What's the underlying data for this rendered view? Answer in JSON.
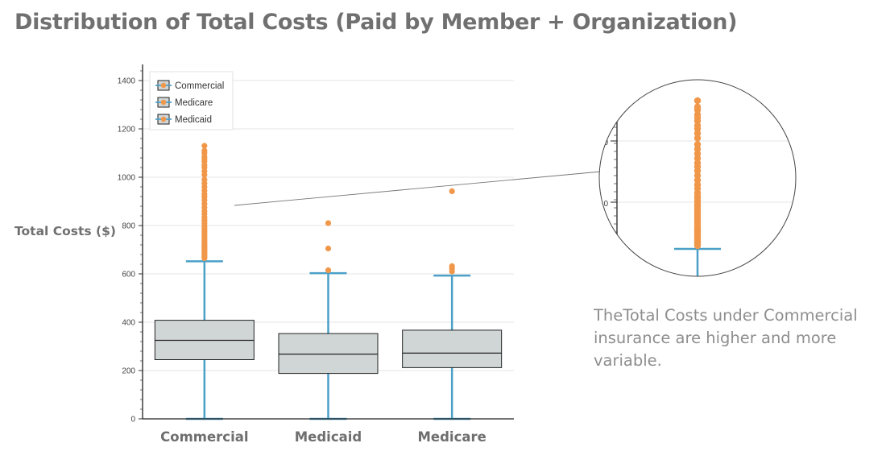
{
  "title": "Distribution of Total Costs (Paid by Member + Organization)",
  "annotation": "TheTotal Costs under Commercial insurance are higher and more variable.",
  "chart_data": {
    "type": "box",
    "ylabel": "Total Costs ($)",
    "xlabel": "",
    "ylim": [
      0,
      1450
    ],
    "yticks": [
      0,
      200,
      400,
      600,
      800,
      1000,
      1200,
      1400
    ],
    "grid": true,
    "legend_position": "top-left",
    "legend": [
      "Commercial",
      "Medicare",
      "Medicaid"
    ],
    "categories": [
      "Commercial",
      "Medicaid",
      "Medicare"
    ],
    "boxes": [
      {
        "name": "Commercial",
        "whisker_low": 0,
        "q1": 245,
        "median": 325,
        "q3": 408,
        "whisker_high": 652,
        "outliers": [
          665,
          670,
          675,
          680,
          685,
          690,
          695,
          700,
          705,
          710,
          715,
          720,
          725,
          730,
          738,
          745,
          752,
          760,
          768,
          775,
          782,
          790,
          798,
          808,
          818,
          825,
          835,
          848,
          860,
          875,
          890,
          905,
          918,
          930,
          945,
          960,
          975,
          990,
          1010,
          1025,
          1040,
          1050,
          1065,
          1075,
          1085,
          1100,
          1110,
          1130
        ]
      },
      {
        "name": "Medicaid",
        "whisker_low": 0,
        "q1": 188,
        "median": 268,
        "q3": 353,
        "whisker_high": 603,
        "outliers": [
          615,
          705,
          810
        ]
      },
      {
        "name": "Medicare",
        "whisker_low": 0,
        "q1": 212,
        "median": 272,
        "q3": 367,
        "whisker_high": 593,
        "outliers": [
          610,
          622,
          632,
          942
        ]
      }
    ],
    "colors": {
      "box_fill": "#d0d5d5",
      "box_edge": "#222222",
      "whisker": "#4ba0c8",
      "outlier": "#f0974a",
      "grid": "#e6e6e6"
    }
  }
}
